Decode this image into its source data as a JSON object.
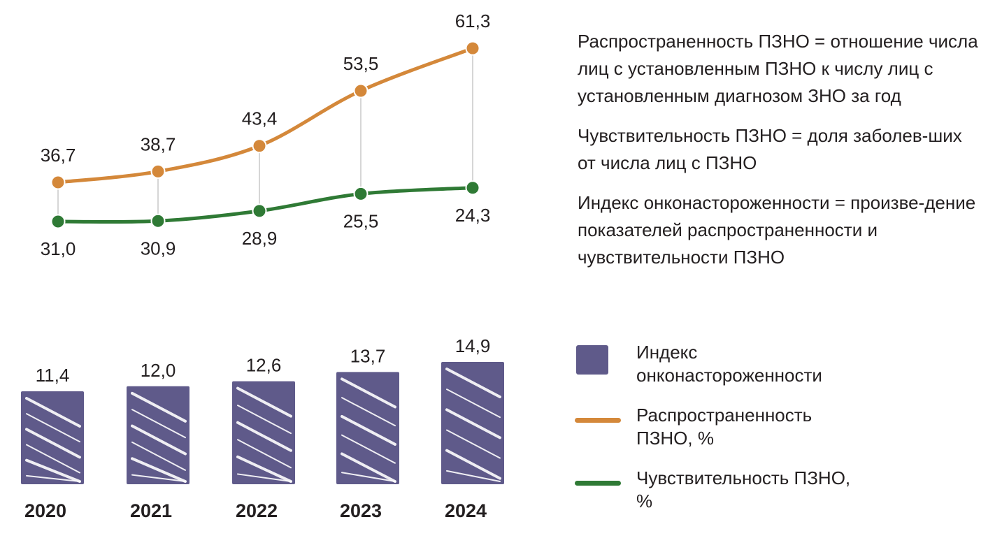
{
  "chart_data": {
    "type": "line+bar",
    "categories": [
      "2020",
      "2021",
      "2022",
      "2023",
      "2024"
    ],
    "series": [
      {
        "name": "Распространенность ПЗНО, %",
        "type": "line",
        "color": "#d4883a",
        "values": [
          36.7,
          38.7,
          43.4,
          53.5,
          61.3
        ],
        "labels": [
          "36,7",
          "38,7",
          "43,4",
          "53,5",
          "61,3"
        ]
      },
      {
        "name": "Чувствительность ПЗНО, %",
        "type": "line",
        "color": "#2f7a35",
        "values": [
          31.0,
          30.9,
          28.9,
          25.5,
          24.3
        ],
        "labels": [
          "31,0",
          "30,9",
          "28,9",
          "25,5",
          "24,3"
        ]
      },
      {
        "name": "Индекс онконастороженности",
        "type": "bar",
        "color": "#5f5a8a",
        "values": [
          11.4,
          12.0,
          12.6,
          13.7,
          14.9
        ],
        "labels": [
          "11,4",
          "12,0",
          "12,6",
          "13,7",
          "14,9"
        ]
      }
    ],
    "legend": [
      {
        "label": "Индекс онконастороженности",
        "color": "#5f5a8a"
      },
      {
        "label": "Распространенность ПЗНО, %",
        "color": "#d4883a"
      },
      {
        "label": "Чувствительность ПЗНО, %",
        "color": "#2f7a35"
      }
    ],
    "legend_position": "right"
  },
  "notes": [
    "Распространенность ПЗНО = отношение числа лиц с установленным ПЗНО к числу лиц с установленным диагнозом ЗНО за год",
    "Чувствительность ПЗНО = доля заболев-ших от числа лиц с ПЗНО",
    "Индекс онконастороженности = произве-дение показателей распространенности и чувствительности ПЗНО"
  ]
}
